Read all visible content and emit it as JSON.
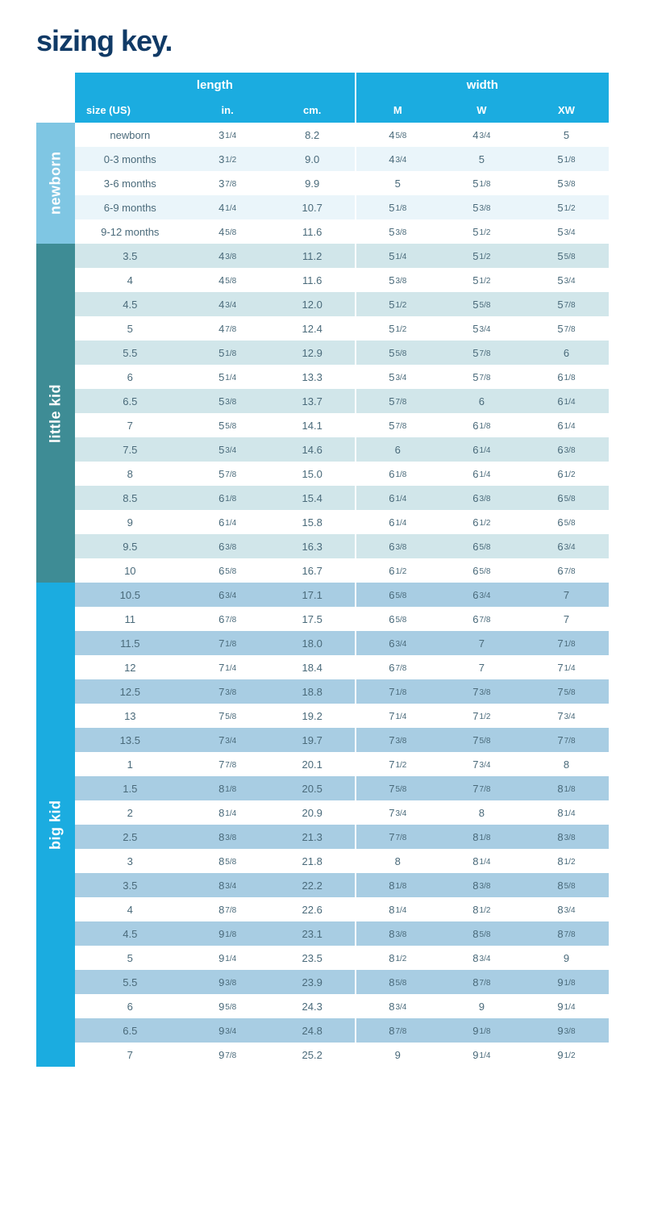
{
  "title": "sizing key.",
  "colors": {
    "title": "#103a66",
    "header_length_bg": "#1bace0",
    "header_width_bg": "#1bace0",
    "header_sub_bg": "#1bace0",
    "text": "#4a6a7a",
    "row_light": "#ffffff",
    "categories": {
      "newborn": {
        "label_bg": "#7fc6e3",
        "stripe_odd": "#ffffff",
        "stripe_even": "#eaf5fa"
      },
      "little_kid": {
        "label_bg": "#3e8c95",
        "stripe_odd": "#d1e6ea",
        "stripe_even": "#ffffff"
      },
      "big_kid": {
        "label_bg": "#1bace0",
        "stripe_odd": "#a8cde3",
        "stripe_even": "#ffffff"
      }
    }
  },
  "header": {
    "length_label": "length",
    "width_label": "width",
    "sub": [
      "size (US)",
      "in.",
      "cm.",
      "M",
      "W",
      "XW"
    ]
  },
  "sections": [
    {
      "key": "newborn",
      "label": "newborn",
      "rows": [
        {
          "size": "newborn",
          "in": "3 ¼",
          "cm": "8.2",
          "m": "4 ⅝",
          "w": "4 ¾",
          "xw": "5"
        },
        {
          "size": "0-3 months",
          "in": "3 ½",
          "cm": "9.0",
          "m": "4 ¾",
          "w": "5",
          "xw": "5 ⅛"
        },
        {
          "size": "3-6 months",
          "in": "3 ⅞",
          "cm": "9.9",
          "m": "5",
          "w": "5 ⅛",
          "xw": "5 ⅜"
        },
        {
          "size": "6-9 months",
          "in": "4 ¼",
          "cm": "10.7",
          "m": "5 ⅛",
          "w": "5 ⅜",
          "xw": "5 ½"
        },
        {
          "size": "9-12 months",
          "in": "4 ⅝",
          "cm": "11.6",
          "m": "5 ⅜",
          "w": "5 ½",
          "xw": "5 ¾"
        }
      ]
    },
    {
      "key": "little_kid",
      "label": "little kid",
      "rows": [
        {
          "size": "3.5",
          "in": "4 ⅜",
          "cm": "11.2",
          "m": "5 ¼",
          "w": "5 ½",
          "xw": "5 ⅝"
        },
        {
          "size": "4",
          "in": "4 ⅝",
          "cm": "11.6",
          "m": "5 ⅜",
          "w": "5 ½",
          "xw": "5 ¾"
        },
        {
          "size": "4.5",
          "in": "4 ¾",
          "cm": "12.0",
          "m": "5 ½",
          "w": "5 ⅝",
          "xw": "5 ⅞"
        },
        {
          "size": "5",
          "in": "4 ⅞",
          "cm": "12.4",
          "m": "5 ½",
          "w": "5 ¾",
          "xw": "5 ⅞"
        },
        {
          "size": "5.5",
          "in": "5 ⅛",
          "cm": "12.9",
          "m": "5 ⅝",
          "w": "5 ⅞",
          "xw": "6"
        },
        {
          "size": "6",
          "in": "5 ¼",
          "cm": "13.3",
          "m": "5 ¾",
          "w": "5 ⅞",
          "xw": "6 ⅛"
        },
        {
          "size": "6.5",
          "in": "5 ⅜",
          "cm": "13.7",
          "m": "5 ⅞",
          "w": "6",
          "xw": "6 ¼"
        },
        {
          "size": "7",
          "in": "5 ⅝",
          "cm": "14.1",
          "m": "5 ⅞",
          "w": "6 ⅛",
          "xw": "6 ¼"
        },
        {
          "size": "7.5",
          "in": "5 ¾",
          "cm": "14.6",
          "m": "6",
          "w": "6 ¼",
          "xw": "6 ⅜"
        },
        {
          "size": "8",
          "in": "5 ⅞",
          "cm": "15.0",
          "m": "6 ⅛",
          "w": "6 ¼",
          "xw": "6 ½"
        },
        {
          "size": "8.5",
          "in": "6 ⅛",
          "cm": "15.4",
          "m": "6 ¼",
          "w": "6 ⅜",
          "xw": "6 ⅝"
        },
        {
          "size": "9",
          "in": "6 ¼",
          "cm": "15.8",
          "m": "6 ¼",
          "w": "6 ½",
          "xw": "6 ⅝"
        },
        {
          "size": "9.5",
          "in": "6 ⅜",
          "cm": "16.3",
          "m": "6 ⅜",
          "w": "6 ⅝",
          "xw": "6 ¾"
        },
        {
          "size": "10",
          "in": "6 ⅝",
          "cm": "16.7",
          "m": "6 ½",
          "w": "6 ⅝",
          "xw": "6 ⅞"
        }
      ]
    },
    {
      "key": "big_kid",
      "label": "big kid",
      "rows": [
        {
          "size": "10.5",
          "in": "6 ¾",
          "cm": "17.1",
          "m": "6 ⅝",
          "w": "6 ¾",
          "xw": "7"
        },
        {
          "size": "11",
          "in": "6 ⅞",
          "cm": "17.5",
          "m": "6 ⅝",
          "w": "6 ⅞",
          "xw": "7"
        },
        {
          "size": "11.5",
          "in": "7 ⅛",
          "cm": "18.0",
          "m": "6 ¾",
          "w": "7",
          "xw": "7 ⅛"
        },
        {
          "size": "12",
          "in": "7 ¼",
          "cm": "18.4",
          "m": "6 ⅞",
          "w": "7",
          "xw": "7 ¼"
        },
        {
          "size": "12.5",
          "in": "7 ⅜",
          "cm": "18.8",
          "m": "7 ⅛",
          "w": "7 ⅜",
          "xw": "7 ⅝"
        },
        {
          "size": "13",
          "in": "7 ⅝",
          "cm": "19.2",
          "m": "7 ¼",
          "w": "7 ½",
          "xw": "7 ¾"
        },
        {
          "size": "13.5",
          "in": "7 ¾",
          "cm": "19.7",
          "m": "7 ⅜",
          "w": "7 ⅝",
          "xw": "7 ⅞"
        },
        {
          "size": "1",
          "in": "7 ⅞",
          "cm": "20.1",
          "m": "7 ½",
          "w": "7 ¾",
          "xw": "8"
        },
        {
          "size": "1.5",
          "in": "8 ⅛",
          "cm": "20.5",
          "m": "7 ⅝",
          "w": "7 ⅞",
          "xw": "8 ⅛"
        },
        {
          "size": "2",
          "in": "8 ¼",
          "cm": "20.9",
          "m": "7 ¾",
          "w": "8",
          "xw": "8 ¼"
        },
        {
          "size": "2.5",
          "in": "8 ⅜",
          "cm": "21.3",
          "m": "7 ⅞",
          "w": "8 ⅛",
          "xw": "8 ⅜"
        },
        {
          "size": "3",
          "in": "8 ⅝",
          "cm": "21.8",
          "m": "8",
          "w": "8 ¼",
          "xw": "8 ½"
        },
        {
          "size": "3.5",
          "in": "8 ¾",
          "cm": "22.2",
          "m": "8 ⅛",
          "w": "8 ⅜",
          "xw": "8 ⅝"
        },
        {
          "size": "4",
          "in": "8 ⅞",
          "cm": "22.6",
          "m": "8 ¼",
          "w": "8 ½",
          "xw": "8 ¾"
        },
        {
          "size": "4.5",
          "in": "9 ⅛",
          "cm": "23.1",
          "m": "8 ⅜",
          "w": "8 ⅝",
          "xw": "8 ⅞"
        },
        {
          "size": "5",
          "in": "9 ¼",
          "cm": "23.5",
          "m": "8 ½",
          "w": "8 ¾",
          "xw": "9"
        },
        {
          "size": "5.5",
          "in": "9 ⅜",
          "cm": "23.9",
          "m": "8 ⅝",
          "w": "8 ⅞",
          "xw": "9 ⅛"
        },
        {
          "size": "6",
          "in": "9 ⅝",
          "cm": "24.3",
          "m": "8 ¾",
          "w": "9",
          "xw": "9 ¼"
        },
        {
          "size": "6.5",
          "in": "9 ¾",
          "cm": "24.8",
          "m": "8 ⅞",
          "w": "9 ⅛",
          "xw": "9 ⅜"
        },
        {
          "size": "7",
          "in": "9 ⅞",
          "cm": "25.2",
          "m": "9",
          "w": "9 ¼",
          "xw": "9 ½"
        }
      ]
    }
  ]
}
